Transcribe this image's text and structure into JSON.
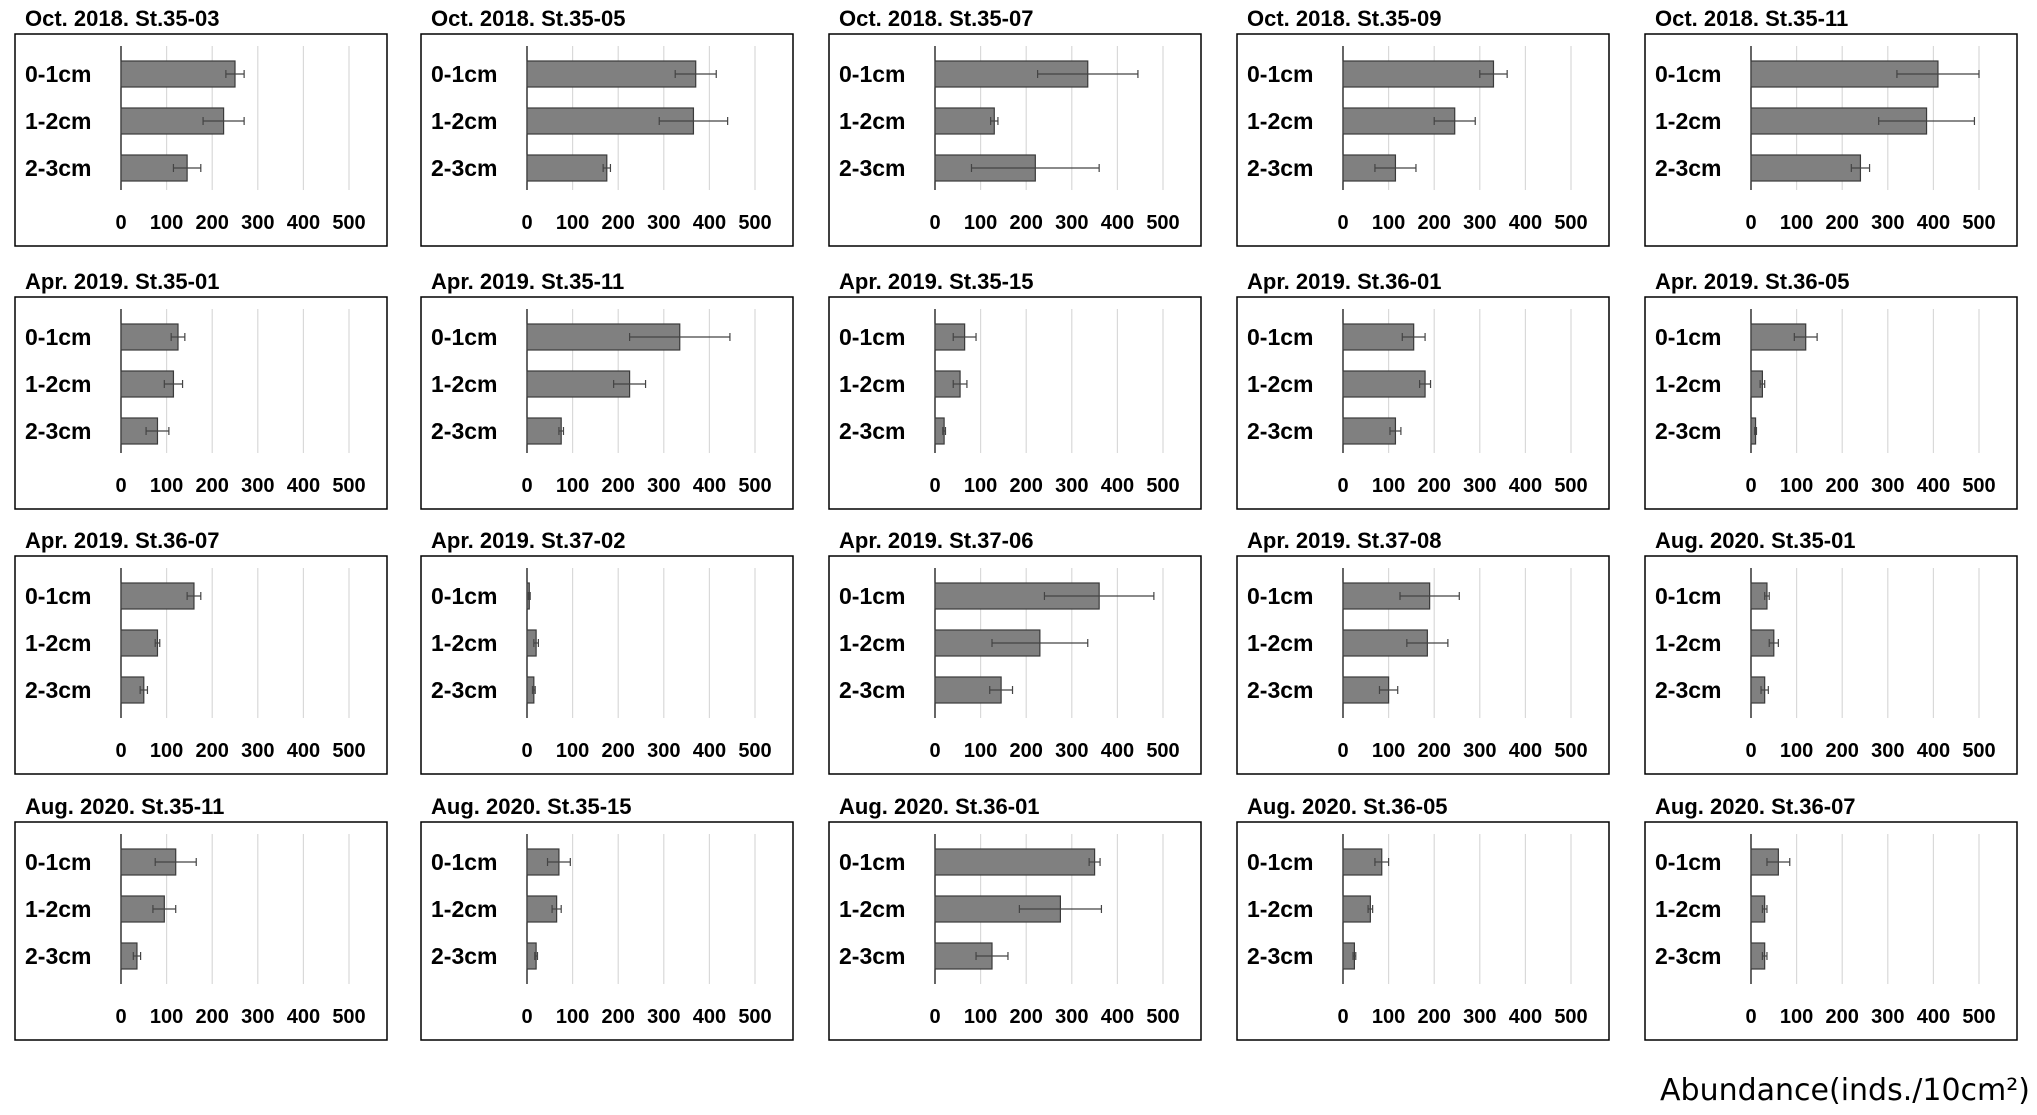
{
  "figure": {
    "unit_label": "Abundance(inds./10cm²)"
  },
  "chart_data": [
    {
      "type": "bar",
      "orientation": "horizontal",
      "title": "Oct. 2018. St.35-03",
      "categories": [
        "0-1cm",
        "1-2cm",
        "2-3cm"
      ],
      "values": [
        250,
        225,
        145
      ],
      "errors": [
        20,
        45,
        30
      ],
      "xlim": [
        0,
        500
      ],
      "ticks": [
        0,
        100,
        200,
        300,
        400,
        500
      ]
    },
    {
      "type": "bar",
      "orientation": "horizontal",
      "title": "Oct. 2018. St.35-05",
      "categories": [
        "0-1cm",
        "1-2cm",
        "2-3cm"
      ],
      "values": [
        370,
        365,
        175
      ],
      "errors": [
        45,
        75,
        8
      ],
      "xlim": [
        0,
        500
      ],
      "ticks": [
        0,
        100,
        200,
        300,
        400,
        500
      ]
    },
    {
      "type": "bar",
      "orientation": "horizontal",
      "title": "Oct. 2018. St.35-07",
      "categories": [
        "0-1cm",
        "1-2cm",
        "2-3cm"
      ],
      "values": [
        335,
        130,
        220
      ],
      "errors": [
        110,
        8,
        140
      ],
      "xlim": [
        0,
        500
      ],
      "ticks": [
        0,
        100,
        200,
        300,
        400,
        500
      ]
    },
    {
      "type": "bar",
      "orientation": "horizontal",
      "title": "Oct. 2018. St.35-09",
      "categories": [
        "0-1cm",
        "1-2cm",
        "2-3cm"
      ],
      "values": [
        330,
        245,
        115
      ],
      "errors": [
        30,
        45,
        45
      ],
      "xlim": [
        0,
        500
      ],
      "ticks": [
        0,
        100,
        200,
        300,
        400,
        500
      ]
    },
    {
      "type": "bar",
      "orientation": "horizontal",
      "title": "Oct. 2018. St.35-11",
      "categories": [
        "0-1cm",
        "1-2cm",
        "2-3cm"
      ],
      "values": [
        410,
        385,
        240
      ],
      "errors": [
        90,
        105,
        20
      ],
      "xlim": [
        0,
        500
      ],
      "ticks": [
        0,
        100,
        200,
        300,
        400,
        500
      ]
    },
    {
      "type": "bar",
      "orientation": "horizontal",
      "title": "Apr. 2019. St.35-01",
      "categories": [
        "0-1cm",
        "1-2cm",
        "2-3cm"
      ],
      "values": [
        125,
        115,
        80
      ],
      "errors": [
        15,
        20,
        25
      ],
      "xlim": [
        0,
        500
      ],
      "ticks": [
        0,
        100,
        200,
        300,
        400,
        500
      ]
    },
    {
      "type": "bar",
      "orientation": "horizontal",
      "title": "Apr. 2019. St.35-11",
      "categories": [
        "0-1cm",
        "1-2cm",
        "2-3cm"
      ],
      "values": [
        335,
        225,
        75
      ],
      "errors": [
        110,
        35,
        5
      ],
      "xlim": [
        0,
        500
      ],
      "ticks": [
        0,
        100,
        200,
        300,
        400,
        500
      ]
    },
    {
      "type": "bar",
      "orientation": "horizontal",
      "title": "Apr. 2019. St.35-15",
      "categories": [
        "0-1cm",
        "1-2cm",
        "2-3cm"
      ],
      "values": [
        65,
        55,
        20
      ],
      "errors": [
        25,
        15,
        3
      ],
      "xlim": [
        0,
        500
      ],
      "ticks": [
        0,
        100,
        200,
        300,
        400,
        500
      ]
    },
    {
      "type": "bar",
      "orientation": "horizontal",
      "title": "Apr. 2019. St.36-01",
      "categories": [
        "0-1cm",
        "1-2cm",
        "2-3cm"
      ],
      "values": [
        155,
        180,
        115
      ],
      "errors": [
        25,
        12,
        12
      ],
      "xlim": [
        0,
        500
      ],
      "ticks": [
        0,
        100,
        200,
        300,
        400,
        500
      ]
    },
    {
      "type": "bar",
      "orientation": "horizontal",
      "title": "Apr. 2019. St.36-05",
      "categories": [
        "0-1cm",
        "1-2cm",
        "2-3cm"
      ],
      "values": [
        120,
        25,
        10
      ],
      "errors": [
        25,
        5,
        2
      ],
      "xlim": [
        0,
        500
      ],
      "ticks": [
        0,
        100,
        200,
        300,
        400,
        500
      ]
    },
    {
      "type": "bar",
      "orientation": "horizontal",
      "title": "Apr. 2019. St.36-07",
      "categories": [
        "0-1cm",
        "1-2cm",
        "2-3cm"
      ],
      "values": [
        160,
        80,
        50
      ],
      "errors": [
        15,
        5,
        8
      ],
      "xlim": [
        0,
        500
      ],
      "ticks": [
        0,
        100,
        200,
        300,
        400,
        500
      ]
    },
    {
      "type": "bar",
      "orientation": "horizontal",
      "title": "Apr. 2019. St.37-02",
      "categories": [
        "0-1cm",
        "1-2cm",
        "2-3cm"
      ],
      "values": [
        5,
        20,
        15
      ],
      "errors": [
        2,
        5,
        3
      ],
      "xlim": [
        0,
        500
      ],
      "ticks": [
        0,
        100,
        200,
        300,
        400,
        500
      ]
    },
    {
      "type": "bar",
      "orientation": "horizontal",
      "title": "Apr. 2019. St.37-06",
      "categories": [
        "0-1cm",
        "1-2cm",
        "2-3cm"
      ],
      "values": [
        360,
        230,
        145
      ],
      "errors": [
        120,
        105,
        25
      ],
      "xlim": [
        0,
        500
      ],
      "ticks": [
        0,
        100,
        200,
        300,
        400,
        500
      ]
    },
    {
      "type": "bar",
      "orientation": "horizontal",
      "title": "Apr. 2019. St.37-08",
      "categories": [
        "0-1cm",
        "1-2cm",
        "2-3cm"
      ],
      "values": [
        190,
        185,
        100
      ],
      "errors": [
        65,
        45,
        20
      ],
      "xlim": [
        0,
        500
      ],
      "ticks": [
        0,
        100,
        200,
        300,
        400,
        500
      ]
    },
    {
      "type": "bar",
      "orientation": "horizontal",
      "title": "Aug. 2020. St.35-01",
      "categories": [
        "0-1cm",
        "1-2cm",
        "2-3cm"
      ],
      "values": [
        35,
        50,
        30
      ],
      "errors": [
        5,
        10,
        8
      ],
      "xlim": [
        0,
        500
      ],
      "ticks": [
        0,
        100,
        200,
        300,
        400,
        500
      ]
    },
    {
      "type": "bar",
      "orientation": "horizontal",
      "title": "Aug. 2020. St.35-11",
      "categories": [
        "0-1cm",
        "1-2cm",
        "2-3cm"
      ],
      "values": [
        120,
        95,
        35
      ],
      "errors": [
        45,
        25,
        8
      ],
      "xlim": [
        0,
        500
      ],
      "ticks": [
        0,
        100,
        200,
        300,
        400,
        500
      ]
    },
    {
      "type": "bar",
      "orientation": "horizontal",
      "title": "Aug. 2020. St.35-15",
      "categories": [
        "0-1cm",
        "1-2cm",
        "2-3cm"
      ],
      "values": [
        70,
        65,
        20
      ],
      "errors": [
        25,
        10,
        3
      ],
      "xlim": [
        0,
        500
      ],
      "ticks": [
        0,
        100,
        200,
        300,
        400,
        500
      ]
    },
    {
      "type": "bar",
      "orientation": "horizontal",
      "title": "Aug. 2020. St.36-01",
      "categories": [
        "0-1cm",
        "1-2cm",
        "2-3cm"
      ],
      "values": [
        350,
        275,
        125
      ],
      "errors": [
        12,
        90,
        35
      ],
      "xlim": [
        0,
        500
      ],
      "ticks": [
        0,
        100,
        200,
        300,
        400,
        500
      ]
    },
    {
      "type": "bar",
      "orientation": "horizontal",
      "title": "Aug. 2020. St.36-05",
      "categories": [
        "0-1cm",
        "1-2cm",
        "2-3cm"
      ],
      "values": [
        85,
        60,
        25
      ],
      "errors": [
        15,
        5,
        3
      ],
      "xlim": [
        0,
        500
      ],
      "ticks": [
        0,
        100,
        200,
        300,
        400,
        500
      ]
    },
    {
      "type": "bar",
      "orientation": "horizontal",
      "title": "Aug. 2020. St.36-07",
      "categories": [
        "0-1cm",
        "1-2cm",
        "2-3cm"
      ],
      "values": [
        60,
        30,
        30
      ],
      "errors": [
        25,
        5,
        5
      ],
      "xlim": [
        0,
        500
      ],
      "ticks": [
        0,
        100,
        200,
        300,
        400,
        500
      ]
    }
  ]
}
